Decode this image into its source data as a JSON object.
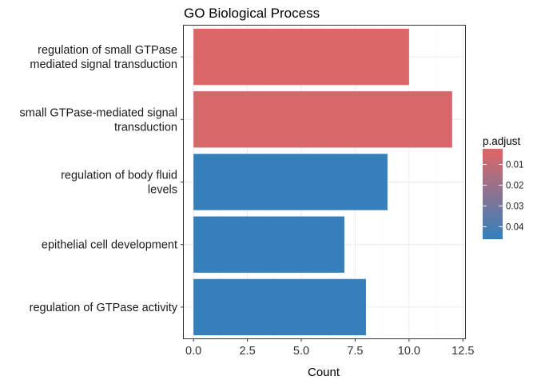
{
  "chart_data": {
    "type": "bar",
    "orientation": "horizontal",
    "title": "GO Biological Process",
    "xlabel": "Count",
    "ylabel": "",
    "xlim": [
      -0.45,
      12.6
    ],
    "xticks": [
      0,
      2.5,
      5,
      7.5,
      10,
      12.5
    ],
    "xtick_labels": [
      "0.0",
      "2.5",
      "5.0",
      "7.5",
      "10.0",
      "12.5"
    ],
    "grid": true,
    "categories": [
      [
        "regulation of small GTPase",
        "mediated signal transduction"
      ],
      [
        "small GTPase-mediated signal",
        "transduction"
      ],
      [
        "regulation of body fluid",
        "levels"
      ],
      [
        "epithelial cell development"
      ],
      [
        "regulation of GTPase activity"
      ]
    ],
    "values": [
      10,
      12,
      9,
      7,
      8
    ],
    "p_adjust": [
      0.0035,
      0.0045,
      0.045,
      0.045,
      0.045
    ],
    "legend": {
      "title": "p.adjust",
      "placement": "right",
      "range": [
        0.0025,
        0.046
      ],
      "ticks": [
        0.01,
        0.02,
        0.03,
        0.04
      ],
      "tick_labels": [
        "0.01",
        "0.02",
        "0.03",
        "0.04"
      ],
      "color_low": "#e06666",
      "color_high": "#3380bd"
    },
    "colors": {
      "panel_border": "#333333",
      "grid_major": "#ebebeb",
      "grid_minor": "#f5f5f5"
    }
  }
}
